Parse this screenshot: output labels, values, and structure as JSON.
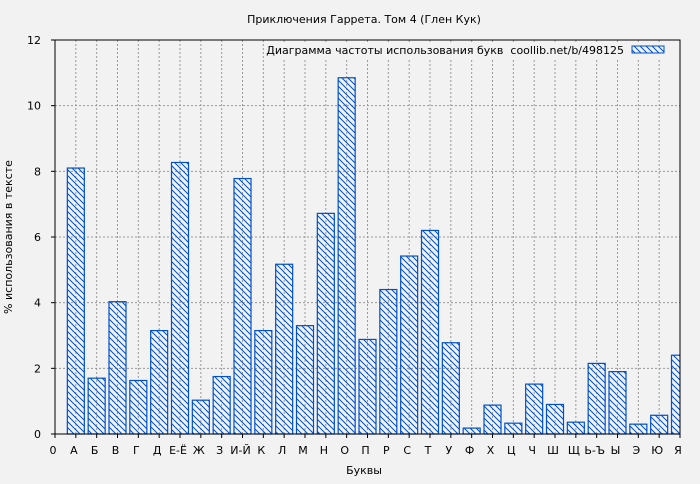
{
  "chart_data": {
    "type": "bar",
    "title": "Приключения Гаррета. Том 4 (Глен Кук)",
    "xlabel": "Буквы",
    "ylabel": "% использования в тексте",
    "ylim": [
      0,
      12
    ],
    "yticks": [
      0,
      2,
      4,
      6,
      8,
      10,
      12
    ],
    "grid": true,
    "legend": {
      "position": "top-right",
      "label": "Диаграмма частоты использования букв  coollib.net/b/498125"
    },
    "colors": {
      "bar": "#0050c8",
      "background": "#f2f2f2",
      "grid": "#999999"
    },
    "pattern": "diagonal-hatch",
    "categories": [
      "0",
      "А",
      "Б",
      "В",
      "Г",
      "Д",
      "Е-Ё",
      "Ж",
      "З",
      "И-Й",
      "К",
      "Л",
      "М",
      "Н",
      "О",
      "П",
      "Р",
      "С",
      "Т",
      "У",
      "Ф",
      "Х",
      "Ц",
      "Ч",
      "Ш",
      "Щ",
      "Ь-Ъ",
      "Ы",
      "Э",
      "Ю",
      "Я"
    ],
    "values": [
      0,
      8.1,
      1.7,
      4.03,
      1.63,
      3.15,
      8.27,
      1.03,
      1.75,
      7.78,
      3.15,
      5.17,
      3.3,
      6.72,
      10.85,
      2.88,
      4.4,
      5.42,
      6.2,
      2.78,
      0.18,
      0.88,
      0.33,
      1.52,
      0.9,
      0.36,
      2.15,
      1.9,
      0.3,
      0.57,
      2.4
    ]
  }
}
